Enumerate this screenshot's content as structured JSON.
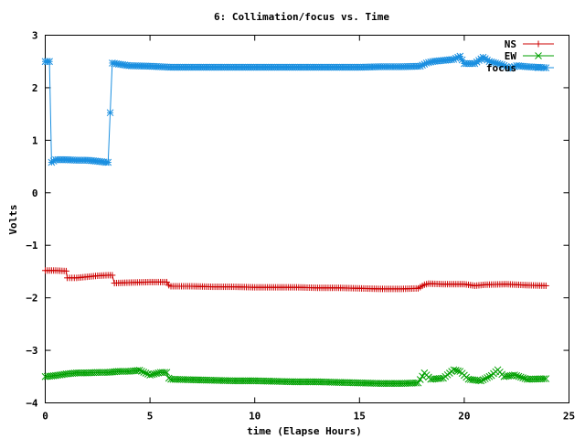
{
  "chart_data": {
    "type": "line",
    "title": "6: Collimation/focus vs. Time",
    "xlabel": "time (Elapse Hours)",
    "ylabel": "Volts",
    "xlim": [
      0,
      25
    ],
    "ylim": [
      -4,
      3
    ],
    "xticks": [
      0,
      5,
      10,
      15,
      20,
      25
    ],
    "yticks": [
      -4,
      -3,
      -2,
      -1,
      0,
      1,
      2,
      3
    ],
    "xtick_labels": [
      "0",
      "5",
      "10",
      "15",
      "20",
      "25"
    ],
    "ytick_labels": [
      "−4",
      "−3",
      "−2",
      "−1",
      "0",
      "1",
      "2",
      "3"
    ],
    "grid": false,
    "legend_position": "top-right",
    "series": [
      {
        "name": "NS",
        "color": "#cc0000",
        "marker": "plus",
        "x": [
          0.0,
          0.5,
          1.0,
          1.05,
          1.5,
          2.0,
          2.5,
          3.0,
          3.2,
          3.3,
          4.0,
          5.0,
          5.8,
          5.9,
          6.0,
          7.0,
          8.0,
          9.0,
          10.0,
          11.0,
          12.0,
          13.0,
          14.0,
          15.0,
          16.0,
          17.0,
          17.8,
          18.1,
          18.3,
          19.0,
          20.0,
          20.5,
          21.0,
          22.0,
          23.0,
          23.9
        ],
        "y": [
          -1.48,
          -1.48,
          -1.49,
          -1.62,
          -1.62,
          -1.6,
          -1.58,
          -1.57,
          -1.57,
          -1.72,
          -1.71,
          -1.7,
          -1.7,
          -1.76,
          -1.78,
          -1.78,
          -1.79,
          -1.79,
          -1.8,
          -1.8,
          -1.8,
          -1.81,
          -1.81,
          -1.82,
          -1.83,
          -1.83,
          -1.82,
          -1.75,
          -1.73,
          -1.74,
          -1.74,
          -1.77,
          -1.75,
          -1.74,
          -1.76,
          -1.77
        ]
      },
      {
        "name": "EW",
        "color": "#00a000",
        "marker": "x",
        "x": [
          0.0,
          0.5,
          1.0,
          1.5,
          2.0,
          2.5,
          3.0,
          3.5,
          4.0,
          4.5,
          5.0,
          5.5,
          5.8,
          5.9,
          6.0,
          7.0,
          8.0,
          9.0,
          10.0,
          11.0,
          12.0,
          13.0,
          14.0,
          15.0,
          16.0,
          17.0,
          17.8,
          18.1,
          18.4,
          19.0,
          19.5,
          19.8,
          20.2,
          20.8,
          21.3,
          21.6,
          21.9,
          22.4,
          23.0,
          23.9
        ],
        "y": [
          -3.5,
          -3.48,
          -3.45,
          -3.43,
          -3.43,
          -3.42,
          -3.42,
          -3.4,
          -3.4,
          -3.38,
          -3.47,
          -3.42,
          -3.42,
          -3.53,
          -3.55,
          -3.56,
          -3.57,
          -3.58,
          -3.58,
          -3.59,
          -3.6,
          -3.6,
          -3.61,
          -3.62,
          -3.63,
          -3.63,
          -3.62,
          -3.43,
          -3.55,
          -3.53,
          -3.37,
          -3.4,
          -3.55,
          -3.58,
          -3.48,
          -3.37,
          -3.5,
          -3.47,
          -3.55,
          -3.54
        ]
      },
      {
        "name": "focus",
        "color": "#1a8fe0",
        "marker": "star",
        "x": [
          0.0,
          0.2,
          0.3,
          0.5,
          1.0,
          1.5,
          2.0,
          2.5,
          2.9,
          3.0,
          3.2,
          3.5,
          4.0,
          5.0,
          6.0,
          7.0,
          8.0,
          9.0,
          10.0,
          11.0,
          12.0,
          13.0,
          14.0,
          15.0,
          16.0,
          17.0,
          17.9,
          18.2,
          18.5,
          19.0,
          19.5,
          19.8,
          20.0,
          20.5,
          20.9,
          21.2,
          21.5,
          21.8,
          22.2,
          22.5,
          23.0,
          23.5,
          23.9
        ],
        "y": [
          2.5,
          2.5,
          0.58,
          0.63,
          0.63,
          0.62,
          0.62,
          0.6,
          0.58,
          0.58,
          2.47,
          2.45,
          2.42,
          2.41,
          2.39,
          2.39,
          2.39,
          2.39,
          2.39,
          2.39,
          2.39,
          2.39,
          2.39,
          2.39,
          2.4,
          2.4,
          2.41,
          2.47,
          2.5,
          2.52,
          2.54,
          2.6,
          2.46,
          2.46,
          2.58,
          2.5,
          2.47,
          2.44,
          2.37,
          2.42,
          2.4,
          2.39,
          2.38
        ]
      }
    ]
  }
}
